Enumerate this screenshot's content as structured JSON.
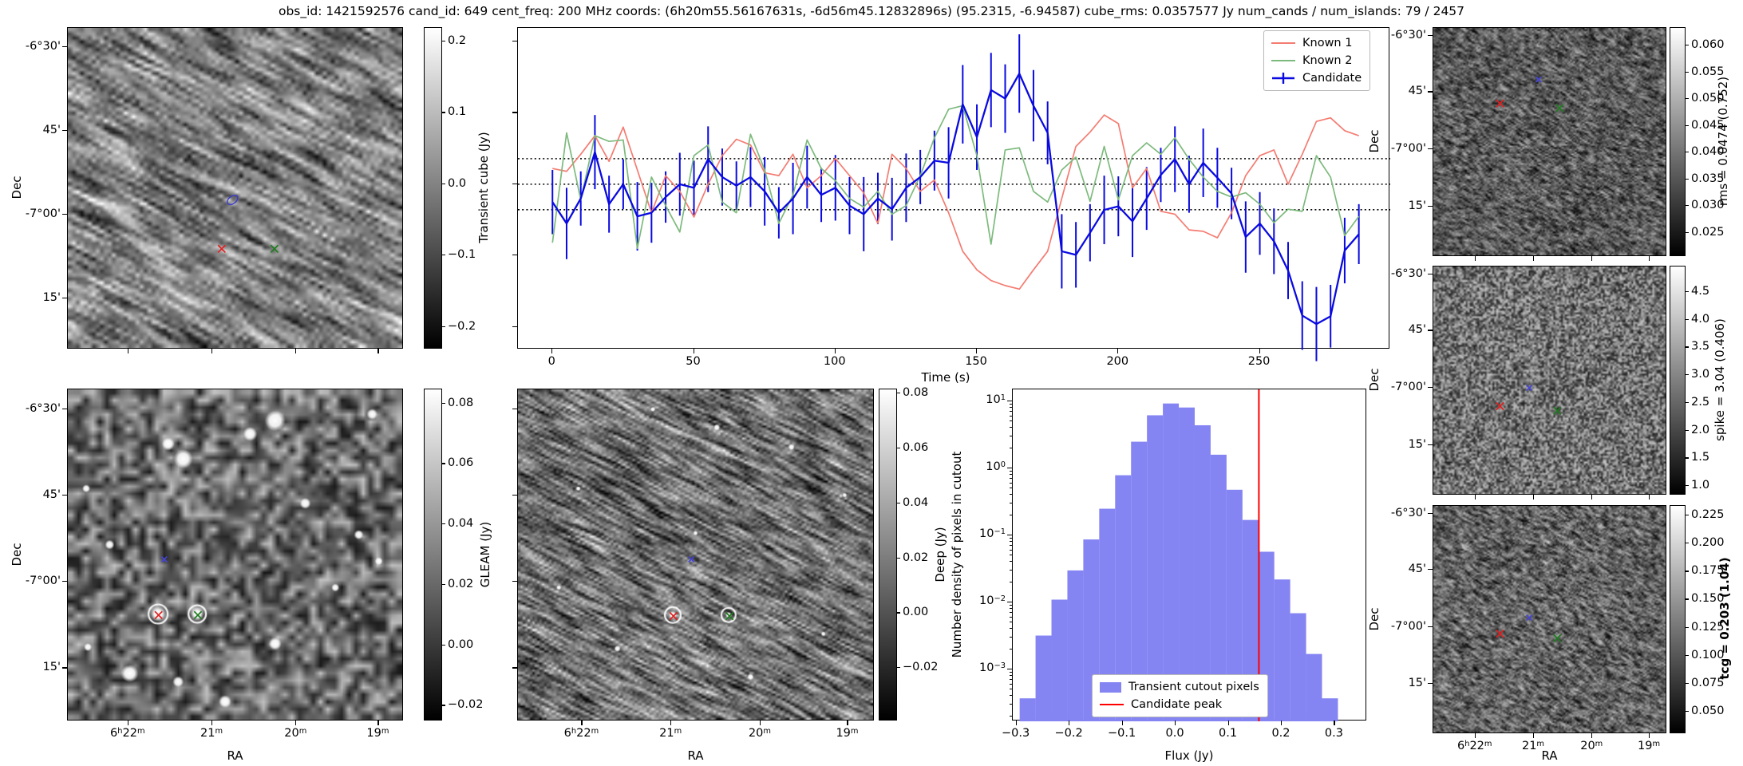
{
  "title": "obs_id: 1421592576 cand_id: 649 cent_freq: 200 MHz coords: (6h20m55.56167631s, -6d56m45.12832896s) (95.2315, -6.94587) cube_rms: 0.0357577 Jy num_cands / num_islands: 79 / 2457",
  "colors": {
    "known1": "#f47c72",
    "known2": "#7dba7d",
    "candidate": "#0a0ae0",
    "hist_fill": "#8484f3",
    "peak_line": "#ff0000",
    "threshold": "#000000",
    "marker_red": "#e01f1f",
    "marker_green": "#1e7d1e",
    "marker_blue": "#4545d8"
  },
  "axes": {
    "dec_label": "Dec",
    "ra_label": "RA",
    "dec_ticks": [
      "-6°30'",
      "45'",
      "-7°00'",
      "15'"
    ],
    "ra_ticks": [
      "6h22m",
      "21m",
      "20m",
      "19m"
    ]
  },
  "panels": {
    "transient": {
      "dec_labeled": true,
      "ra_labeled": false,
      "markers": [
        {
          "shape": "contour",
          "color": "#3b3bd0",
          "x": 0.49,
          "y": 0.535
        },
        {
          "shape": "x",
          "color": "#e01f1f",
          "x": 0.458,
          "y": 0.687
        },
        {
          "shape": "x",
          "color": "#1e7d1e",
          "x": 0.615,
          "y": 0.687
        }
      ]
    },
    "gleam": {
      "dec_labeled": true,
      "ra_labeled": true,
      "markers": [
        {
          "shape": "plus",
          "color": "#4545d8",
          "x": 0.287,
          "y": 0.512
        },
        {
          "shape": "x",
          "color": "#e01f1f",
          "x": 0.27,
          "y": 0.68
        },
        {
          "shape": "x",
          "color": "#1e7d1e",
          "x": 0.387,
          "y": 0.68
        }
      ]
    },
    "deep": {
      "dec_labeled": false,
      "ra_labeled": true,
      "markers": [
        {
          "shape": "plus",
          "color": "#4545d8",
          "x": 0.486,
          "y": 0.512
        },
        {
          "shape": "x",
          "color": "#e01f1f",
          "x": 0.436,
          "y": 0.683
        },
        {
          "shape": "x",
          "color": "#1e7d1e",
          "x": 0.593,
          "y": 0.683
        }
      ]
    },
    "rms": {
      "dec_labeled": true,
      "ra_labeled": false,
      "markers": [
        {
          "shape": "plus",
          "color": "#4545d8",
          "x": 0.45,
          "y": 0.225
        },
        {
          "shape": "x",
          "color": "#e01f1f",
          "x": 0.285,
          "y": 0.33
        },
        {
          "shape": "x",
          "color": "#1e7d1e",
          "x": 0.54,
          "y": 0.35
        }
      ]
    },
    "spike": {
      "dec_labeled": true,
      "ra_labeled": false,
      "markers": [
        {
          "shape": "plus",
          "color": "#4545d8",
          "x": 0.41,
          "y": 0.53
        },
        {
          "shape": "x",
          "color": "#e01f1f",
          "x": 0.285,
          "y": 0.61
        },
        {
          "shape": "x",
          "color": "#1e7d1e",
          "x": 0.53,
          "y": 0.63
        }
      ]
    },
    "tcg": {
      "dec_labeled": true,
      "ra_labeled": true,
      "markers": [
        {
          "shape": "plus",
          "color": "#4545d8",
          "x": 0.41,
          "y": 0.49
        },
        {
          "shape": "x",
          "color": "#e01f1f",
          "x": 0.285,
          "y": 0.56
        },
        {
          "shape": "x",
          "color": "#1e7d1e",
          "x": 0.53,
          "y": 0.58
        }
      ]
    }
  },
  "colorbars": {
    "transient": {
      "label": "Transient cube (Jy)",
      "bold": false,
      "vmin": -0.2316,
      "vmax": 0.219,
      "ticks": [
        "0.2",
        "0.1",
        "0.0",
        "-0.1",
        "-0.2"
      ]
    },
    "gleam": {
      "label": "GLEAM (Jy)",
      "bold": false,
      "vmin": -0.0252,
      "vmax": 0.0847,
      "ticks": [
        "0.08",
        "0.06",
        "0.04",
        "0.02",
        "0.00",
        "-0.02"
      ]
    },
    "deep": {
      "label": "Deep (Jy)",
      "bold": false,
      "vmin": -0.0394,
      "vmax": 0.0815,
      "ticks": [
        "0.08",
        "0.06",
        "0.04",
        "0.02",
        "0.00",
        "-0.02"
      ]
    },
    "rms": {
      "label": "rms = 0.0474 (0.752)",
      "bold": false,
      "vmin": 0.0205,
      "vmax": 0.0633,
      "ticks": [
        "0.060",
        "0.055",
        "0.050",
        "0.045",
        "0.040",
        "0.035",
        "0.030",
        "0.025"
      ]
    },
    "spike": {
      "label": "spike = 3.04 (0.406)",
      "bold": false,
      "vmin": 0.83,
      "vmax": 4.96,
      "ticks": [
        "4.5",
        "4.0",
        "3.5",
        "3.0",
        "2.5",
        "2.0",
        "1.5",
        "1.0"
      ]
    },
    "tcg": {
      "label": "tcg = 0.203 (1.04)",
      "bold": true,
      "vmin": 0.03,
      "vmax": 0.2336,
      "ticks": [
        "0.225",
        "0.200",
        "0.175",
        "0.150",
        "0.125",
        "0.100",
        "0.075",
        "0.050"
      ]
    }
  },
  "chart_data": [
    {
      "type": "line",
      "title": "",
      "xlabel": "Time (s)",
      "ylabel": "",
      "xlim": [
        -12.2,
        296.1
      ],
      "ylim": [
        -0.2316,
        0.219
      ],
      "xticks": [
        0,
        50,
        100,
        150,
        200,
        250
      ],
      "yticks": [
        0.2,
        0.1,
        0.0,
        -0.1,
        -0.2
      ],
      "threshold_lines": [
        0.0357577,
        0.0,
        -0.0357577
      ],
      "legend_position": "upper right",
      "x": [
        0,
        5,
        10,
        15,
        20,
        25,
        30,
        35,
        40,
        45,
        50,
        55,
        60,
        65,
        70,
        75,
        80,
        85,
        90,
        95,
        100,
        105,
        110,
        115,
        120,
        125,
        130,
        135,
        140,
        145,
        150,
        155,
        160,
        165,
        170,
        175,
        180,
        185,
        190,
        195,
        200,
        205,
        210,
        215,
        220,
        225,
        230,
        235,
        240,
        245,
        250,
        255,
        260,
        265,
        270,
        275,
        280,
        285
      ],
      "series": [
        {
          "name": "Known 1",
          "color": "known1",
          "values": [
            0.022,
            0.018,
            0.042,
            0.068,
            0.032,
            0.08,
            0.02,
            -0.04,
            0.012,
            -0.01,
            -0.046,
            0.0,
            0.04,
            0.063,
            0.055,
            0.016,
            0.012,
            0.042,
            -0.005,
            0.012,
            0.036,
            0.012,
            -0.012,
            -0.055,
            0.042,
            0.022,
            -0.01,
            0.006,
            -0.04,
            -0.094,
            -0.12,
            -0.135,
            -0.142,
            -0.147,
            -0.12,
            -0.094,
            -0.02,
            0.053,
            0.073,
            0.097,
            0.085,
            -0.005,
            0.022,
            -0.038,
            -0.042,
            -0.064,
            -0.066,
            -0.075,
            -0.04,
            0.012,
            0.04,
            0.048,
            0.0,
            0.042,
            0.088,
            0.093,
            0.075,
            0.068
          ]
        },
        {
          "name": "Known 2",
          "color": "known2",
          "values": [
            -0.082,
            0.072,
            -0.022,
            0.068,
            0.06,
            0.062,
            -0.09,
            0.01,
            -0.03,
            -0.067,
            0.04,
            0.055,
            -0.025,
            -0.04,
            0.07,
            0.02,
            -0.055,
            -0.015,
            0.062,
            0.022,
            0.005,
            -0.02,
            -0.032,
            -0.01,
            -0.042,
            -0.03,
            0.012,
            0.065,
            0.105,
            0.11,
            0.04,
            -0.084,
            0.048,
            0.051,
            -0.01,
            -0.025,
            0.02,
            0.038,
            -0.024,
            0.053,
            -0.022,
            0.04,
            0.058,
            0.042,
            0.065,
            0.035,
            0.01,
            -0.01,
            -0.018,
            -0.012,
            -0.028,
            -0.054,
            -0.035,
            -0.038,
            0.04,
            0.01,
            -0.072,
            -0.045
          ]
        },
        {
          "name": "Candidate",
          "color": "candidate",
          "values": [
            -0.025,
            -0.055,
            -0.02,
            0.045,
            -0.028,
            0.0,
            -0.045,
            -0.04,
            -0.018,
            0.0,
            -0.005,
            0.035,
            0.01,
            -0.002,
            0.01,
            -0.01,
            -0.04,
            -0.02,
            0.01,
            -0.015,
            -0.005,
            -0.03,
            -0.042,
            -0.02,
            -0.035,
            -0.005,
            0.01,
            0.033,
            0.03,
            0.112,
            0.066,
            0.132,
            0.12,
            0.155,
            0.11,
            0.072,
            -0.094,
            -0.099,
            -0.068,
            -0.036,
            -0.031,
            -0.052,
            -0.02,
            0.013,
            0.035,
            0.0,
            0.03,
            0.009,
            -0.013,
            -0.074,
            -0.055,
            -0.08,
            -0.121,
            -0.184,
            -0.196,
            -0.185,
            -0.093,
            -0.07
          ],
          "errors": [
            0.045,
            0.05,
            0.038,
            0.052,
            0.04,
            0.035,
            0.048,
            0.042,
            0.036,
            0.044,
            0.038,
            0.046,
            0.04,
            0.034,
            0.042,
            0.048,
            0.036,
            0.05,
            0.044,
            0.038,
            0.046,
            0.04,
            0.052,
            0.036,
            0.044,
            0.048,
            0.038,
            0.042,
            0.05,
            0.055,
            0.046,
            0.052,
            0.048,
            0.055,
            0.05,
            0.044,
            0.052,
            0.046,
            0.04,
            0.048,
            0.042,
            0.05,
            0.044,
            0.038,
            0.046,
            0.04,
            0.048,
            0.042,
            0.036,
            0.05,
            0.044,
            0.046,
            0.04,
            0.048,
            0.052,
            0.044,
            0.046,
            0.042
          ]
        }
      ]
    },
    {
      "type": "bar",
      "title": "",
      "xlabel": "Flux (Jy)",
      "ylabel": "Number density of pixels in cutout",
      "yscale": "log",
      "xlim": [
        -0.307,
        0.361
      ],
      "ylim": [
        0.000168,
        15.1
      ],
      "xticks": [
        -0.3,
        -0.2,
        -0.1,
        0.0,
        0.1,
        0.2,
        0.3
      ],
      "ytick_exponents": [
        1,
        0,
        -1,
        -2,
        -3
      ],
      "bin_edges": [
        -0.294,
        -0.264,
        -0.234,
        -0.204,
        -0.174,
        -0.144,
        -0.114,
        -0.084,
        -0.054,
        -0.024,
        0.006,
        0.036,
        0.066,
        0.096,
        0.126,
        0.156,
        0.186,
        0.216,
        0.246,
        0.276,
        0.306
      ],
      "values": [
        0.00037,
        0.0032,
        0.011,
        0.03,
        0.087,
        0.25,
        0.79,
        2.5,
        6.2,
        9.3,
        8.1,
        4.4,
        1.6,
        0.48,
        0.17,
        0.057,
        0.022,
        0.0069,
        0.0017,
        0.00037
      ],
      "candidate_peak": 0.157,
      "legend": [
        "Transient cutout pixels",
        "Candidate peak"
      ],
      "legend_position": "lower center-left"
    }
  ]
}
